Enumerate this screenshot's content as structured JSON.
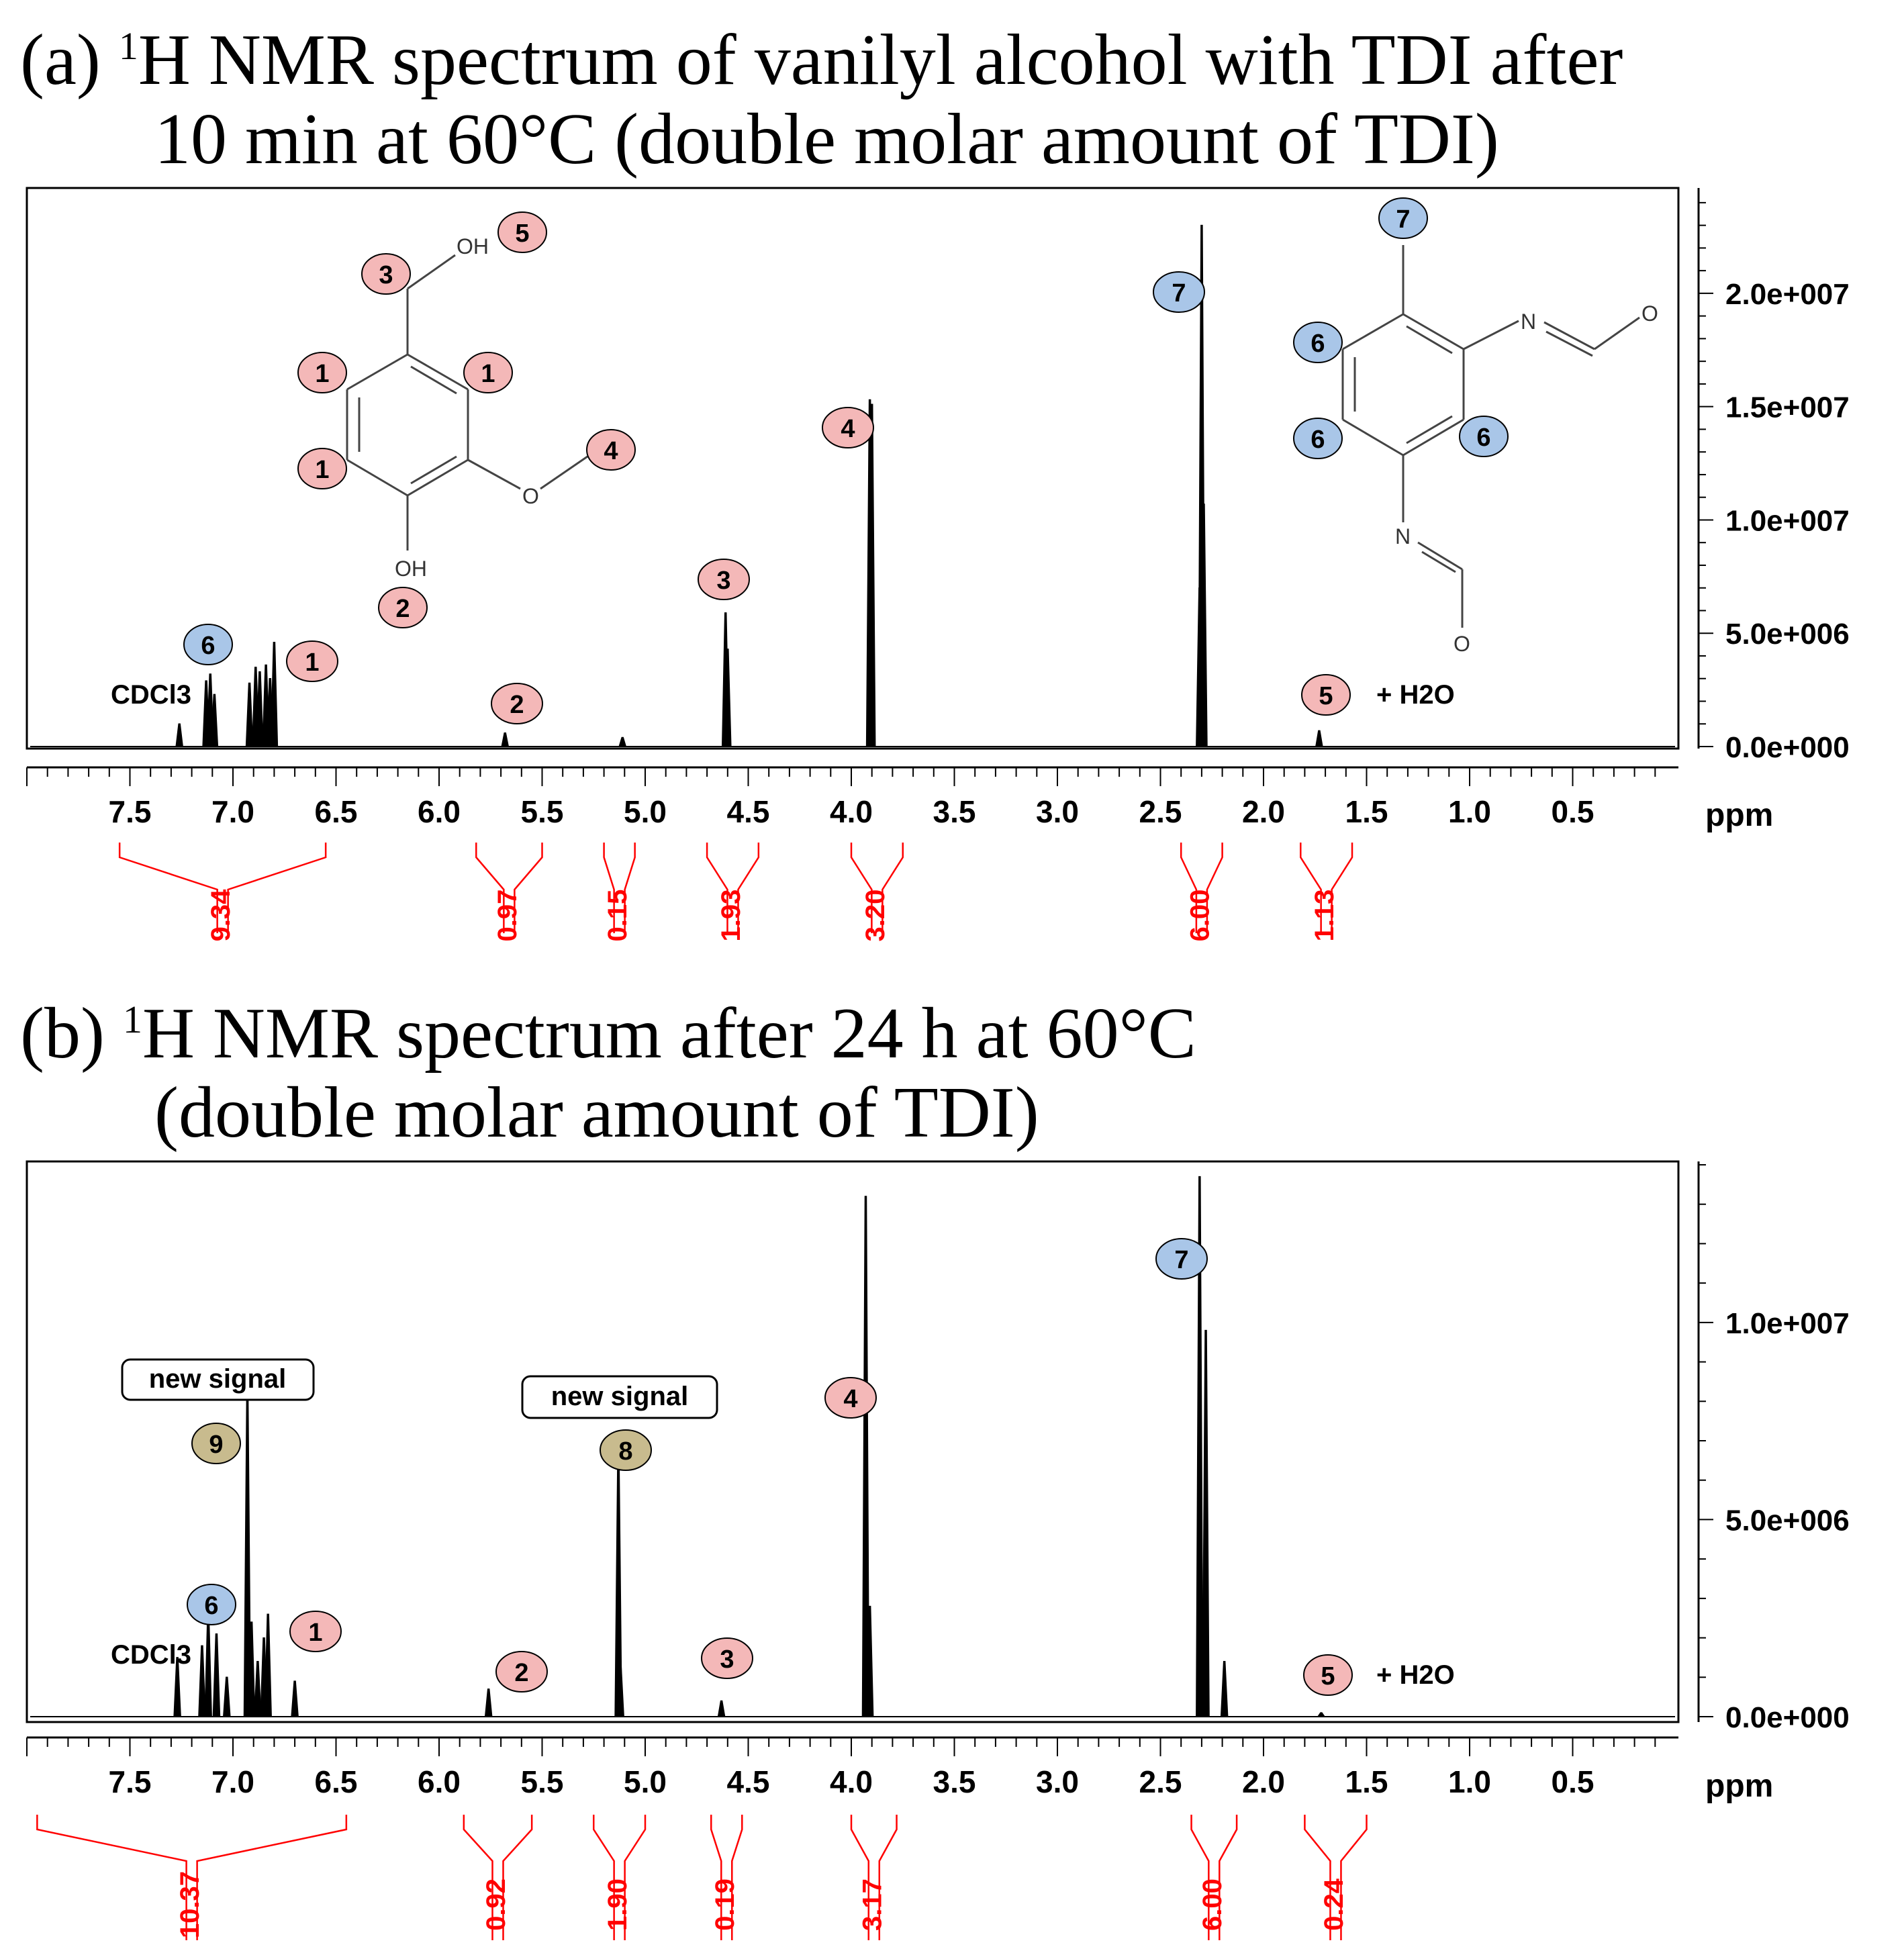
{
  "panel_a": {
    "title_prefix": "(a) ",
    "title_sup": "1",
    "title_line1": "H NMR spectrum of vanilyl alcohol with TDI after",
    "title_line2": "10 min at 60°C (double molar amount of TDI)"
  },
  "panel_b": {
    "title_prefix": "(b) ",
    "title_sup": "1",
    "title_line1": "H NMR spectrum after 24 h at 60°C",
    "title_line2": "(double molar amount of TDI)"
  },
  "colors": {
    "pink": "#f4b8b8",
    "blue": "#a9c6e8",
    "tan": "#c8bb8e",
    "red": "#ff0000"
  },
  "chart_data": [
    {
      "type": "line",
      "title": "(a) 1H NMR spectrum of vanilyl alcohol with TDI after 10 min at 60°C (double molar amount of TDI)",
      "xlabel": "ppm",
      "xlim": [
        8.0,
        0.0
      ],
      "ylim": [
        0,
        24500000
      ],
      "x_ticks": [
        "7.5",
        "7.0",
        "6.5",
        "6.0",
        "5.5",
        "5.0",
        "4.5",
        "4.0",
        "3.5",
        "3.0",
        "2.5",
        "2.0",
        "1.5",
        "1.0",
        "0.5"
      ],
      "y_ticks": [
        "0.0e+000",
        "5.0e+006",
        "1.0e+007",
        "1.5e+007",
        "2.0e+007"
      ],
      "peaks_ppm": [
        [
          7.26,
          1000000
        ],
        [
          7.13,
          2900000
        ],
        [
          7.11,
          3200000
        ],
        [
          7.09,
          2300000
        ],
        [
          6.92,
          2800000
        ],
        [
          6.89,
          3500000
        ],
        [
          6.87,
          3300000
        ],
        [
          6.84,
          3600000
        ],
        [
          6.82,
          3000000
        ],
        [
          6.8,
          4600000
        ],
        [
          5.68,
          600000
        ],
        [
          5.11,
          400000
        ],
        [
          4.61,
          5900000
        ],
        [
          4.6,
          4300000
        ],
        [
          3.91,
          15300000
        ],
        [
          3.9,
          15100000
        ],
        [
          2.31,
          7000000
        ],
        [
          2.3,
          23000000
        ],
        [
          2.29,
          10700000
        ],
        [
          1.73,
          700000
        ]
      ],
      "integrals": [
        {
          "label": "9.34",
          "from": 7.55,
          "to": 6.55
        },
        {
          "label": "0.97",
          "from": 5.82,
          "to": 5.5
        },
        {
          "label": "0.15",
          "from": 5.2,
          "to": 5.05
        },
        {
          "label": "1.93",
          "from": 4.7,
          "to": 4.45
        },
        {
          "label": "3.20",
          "from": 4.0,
          "to": 3.75
        },
        {
          "label": "6.00",
          "from": 2.4,
          "to": 2.2
        },
        {
          "label": "1.13",
          "from": 1.82,
          "to": 1.57
        }
      ],
      "annotations": {
        "cdcl3": "CDCl3",
        "h2o": "+ H2O",
        "peak_markers": [
          {
            "text": "6",
            "color": "blue"
          },
          {
            "text": "1",
            "color": "pink"
          },
          {
            "text": "2",
            "color": "pink"
          },
          {
            "text": "3",
            "color": "pink"
          },
          {
            "text": "4",
            "color": "pink"
          },
          {
            "text": "7",
            "color": "blue"
          },
          {
            "text": "5",
            "color": "pink"
          }
        ]
      }
    },
    {
      "type": "line",
      "title": "(b) 1H NMR spectrum after 24 h at 60°C (double molar amount of TDI)",
      "xlabel": "ppm",
      "xlim": [
        8.0,
        0.0
      ],
      "ylim": [
        0,
        14000000
      ],
      "x_ticks": [
        "7.5",
        "7.0",
        "6.5",
        "6.0",
        "5.5",
        "5.0",
        "4.5",
        "4.0",
        "3.5",
        "3.0",
        "2.5",
        "2.0",
        "1.5",
        "1.0",
        "0.5"
      ],
      "y_ticks": [
        "0.0e+000",
        "5.0e+006",
        "1.0e+007"
      ],
      "peaks_ppm": [
        [
          7.27,
          1500000
        ],
        [
          7.15,
          1800000
        ],
        [
          7.12,
          2600000
        ],
        [
          7.08,
          2100000
        ],
        [
          7.03,
          1000000
        ],
        [
          6.93,
          8200000
        ],
        [
          6.91,
          2400000
        ],
        [
          6.88,
          1400000
        ],
        [
          6.85,
          2000000
        ],
        [
          6.83,
          2600000
        ],
        [
          6.7,
          900000
        ],
        [
          5.76,
          700000
        ],
        [
          5.13,
          6700000
        ],
        [
          5.12,
          1300000
        ],
        [
          4.63,
          400000
        ],
        [
          3.93,
          13200000
        ],
        [
          3.91,
          2800000
        ],
        [
          2.31,
          13700000
        ],
        [
          2.28,
          9800000
        ],
        [
          2.19,
          1400000
        ],
        [
          1.72,
          100000
        ]
      ],
      "integrals": [
        {
          "label": "10.37",
          "from": 7.95,
          "to": 6.45
        },
        {
          "label": "0.92",
          "from": 5.88,
          "to": 5.55
        },
        {
          "label": "1.90",
          "from": 5.25,
          "to": 5.0
        },
        {
          "label": "0.19",
          "from": 4.68,
          "to": 4.53
        },
        {
          "label": "3.17",
          "from": 4.0,
          "to": 3.78
        },
        {
          "label": "6.00",
          "from": 2.35,
          "to": 2.13
        },
        {
          "label": "0.24",
          "from": 1.8,
          "to": 1.5
        }
      ],
      "annotations": {
        "cdcl3": "CDCl3",
        "h2o": "+ H2O",
        "new_signal_1": "new signal",
        "new_signal_2": "new signal",
        "peak_markers": [
          {
            "text": "9",
            "color": "tan"
          },
          {
            "text": "8",
            "color": "tan"
          },
          {
            "text": "6",
            "color": "blue"
          },
          {
            "text": "1",
            "color": "pink"
          },
          {
            "text": "2",
            "color": "pink"
          },
          {
            "text": "3",
            "color": "pink"
          },
          {
            "text": "4",
            "color": "pink"
          },
          {
            "text": "7",
            "color": "blue"
          },
          {
            "text": "5",
            "color": "pink"
          }
        ]
      }
    }
  ],
  "structures": {
    "vanillyl": {
      "oh_top": "OH",
      "oh_bottom": "OH",
      "o": "O",
      "labels": [
        "3",
        "5",
        "1",
        "1",
        "1",
        "4",
        "2"
      ]
    },
    "tdi": {
      "n_top": "N",
      "o_top": "O",
      "n_bottom": "N",
      "o_bottom": "O",
      "labels": [
        "7",
        "6",
        "6",
        "6"
      ]
    }
  }
}
